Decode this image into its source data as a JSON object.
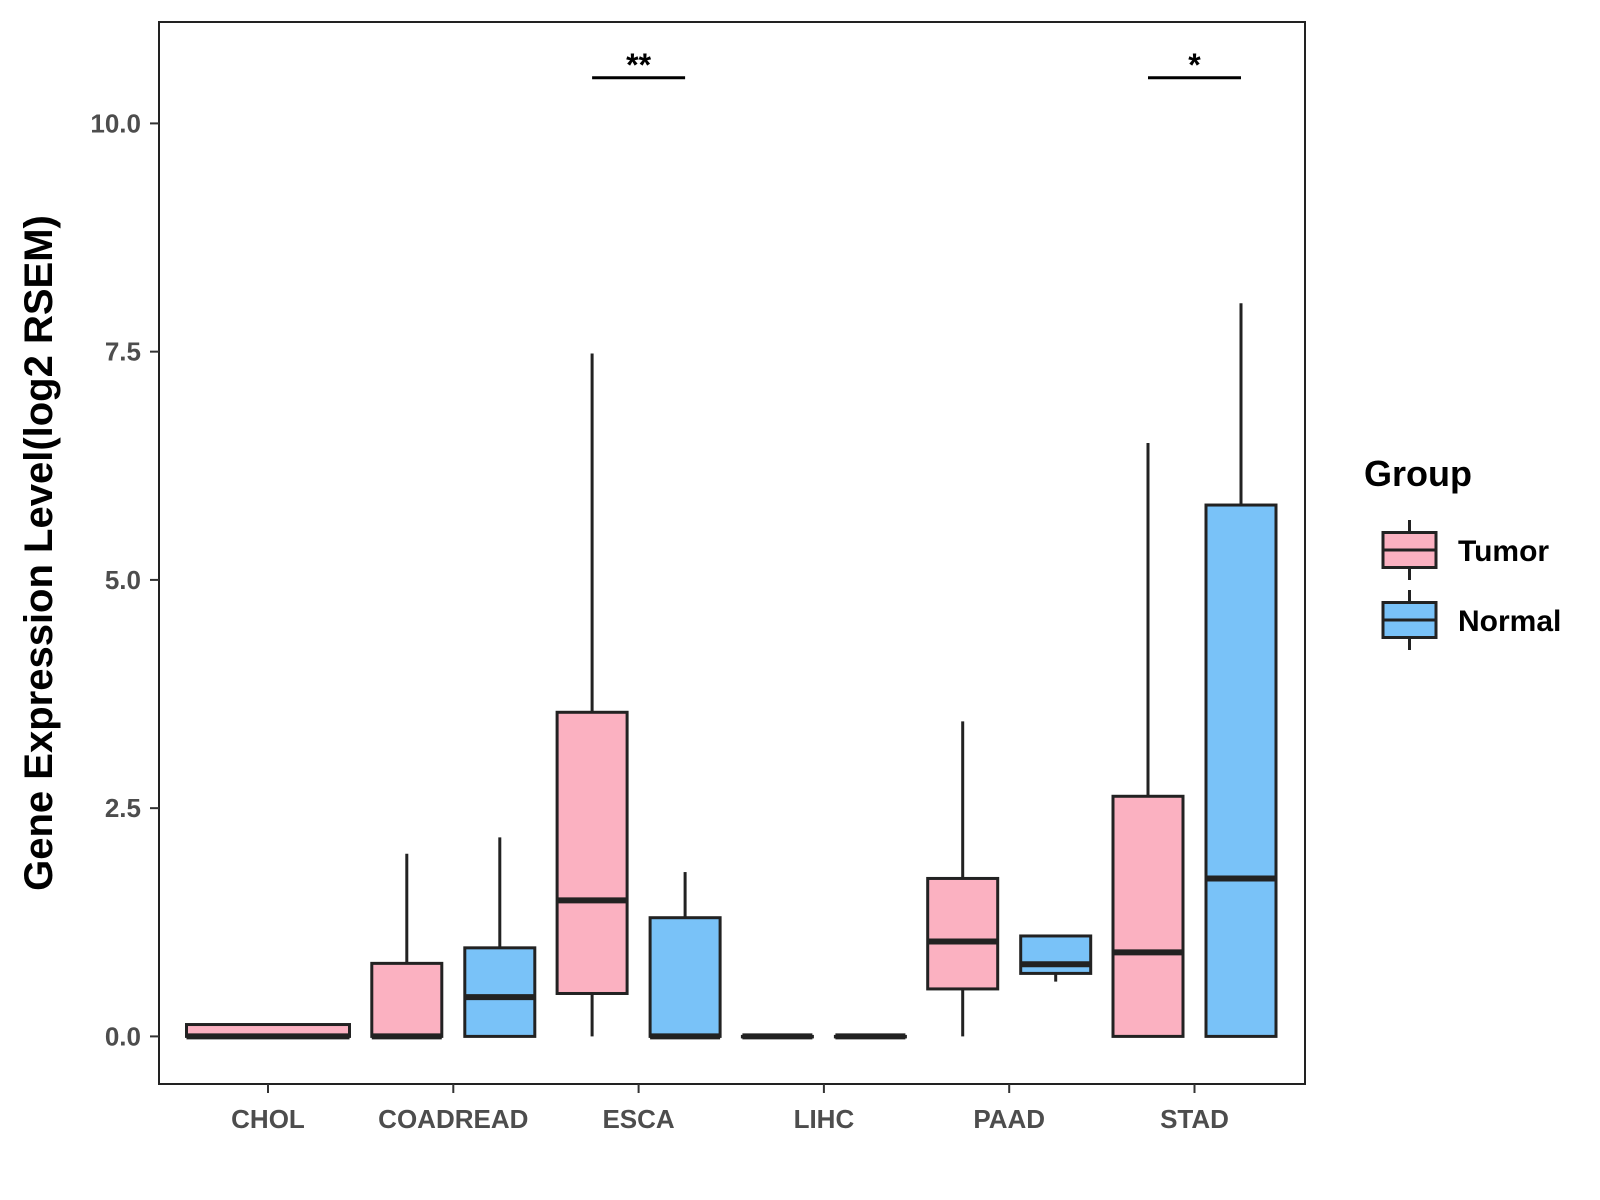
{
  "chart_data": {
    "type": "boxplot",
    "ylabel": "Gene Expression Level(log2 RSEM)",
    "xlabel": "",
    "ylim": [
      -0.5,
      11.1
    ],
    "yticks": [
      0.0,
      2.5,
      5.0,
      7.5,
      10.0
    ],
    "ytick_labels": [
      "0.0",
      "2.5",
      "5.0",
      "7.5",
      "10.0"
    ],
    "categories": [
      "CHOL",
      "COADREAD",
      "ESCA",
      "LIHC",
      "PAAD",
      "STAD"
    ],
    "legend": {
      "title": "Group",
      "position": "right"
    },
    "series": [
      {
        "name": "Tumor",
        "color": "#FBB1C1",
        "boxes": [
          {
            "category": "CHOL",
            "min": 0.0,
            "q1": 0.0,
            "median": 0.0,
            "q3": 0.13,
            "max": 0.13
          },
          {
            "category": "COADREAD",
            "min": 0.0,
            "q1": 0.0,
            "median": 0.0,
            "q3": 0.8,
            "max": 2.0
          },
          {
            "category": "ESCA",
            "min": 0.0,
            "q1": 0.47,
            "median": 1.49,
            "q3": 3.55,
            "max": 7.48
          },
          {
            "category": "LIHC",
            "min": 0.0,
            "q1": 0.0,
            "median": 0.0,
            "q3": 0.0,
            "max": 0.0
          },
          {
            "category": "PAAD",
            "min": 0.0,
            "q1": 0.52,
            "median": 1.04,
            "q3": 1.73,
            "max": 3.45
          },
          {
            "category": "STAD",
            "min": 0.0,
            "q1": 0.0,
            "median": 0.92,
            "q3": 2.63,
            "max": 6.5
          }
        ]
      },
      {
        "name": "Normal",
        "color": "#79C2F8",
        "boxes": [
          {
            "category": "CHOL",
            "absent": true
          },
          {
            "category": "COADREAD",
            "min": 0.0,
            "q1": 0.0,
            "median": 0.43,
            "q3": 0.97,
            "max": 2.18
          },
          {
            "category": "ESCA",
            "min": 0.0,
            "q1": 0.0,
            "median": 0.0,
            "q3": 1.3,
            "max": 1.8
          },
          {
            "category": "LIHC",
            "min": 0.0,
            "q1": 0.0,
            "median": 0.0,
            "q3": 0.0,
            "max": 0.0
          },
          {
            "category": "PAAD",
            "min": 0.6,
            "q1": 0.69,
            "median": 0.79,
            "q3": 1.1,
            "max": 1.1
          },
          {
            "category": "STAD",
            "min": 0.0,
            "q1": 0.0,
            "median": 1.73,
            "q3": 5.82,
            "max": 8.03
          }
        ]
      }
    ],
    "annotations": [
      {
        "category": "ESCA",
        "label": "**",
        "y": 10.5
      },
      {
        "category": "STAD",
        "label": "*",
        "y": 10.5
      }
    ]
  }
}
